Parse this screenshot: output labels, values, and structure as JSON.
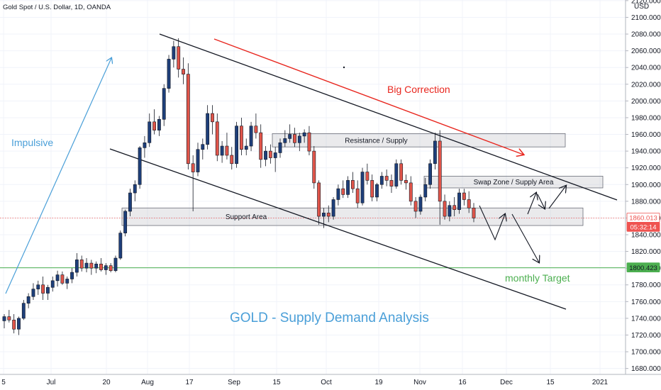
{
  "header": {
    "symbol": "Gold Spot / U.S. Dollar, 1D, OANDA",
    "currency": "USD"
  },
  "chart_data": {
    "type": "candlestick",
    "title": "GOLD - Supply Demand Analysis",
    "ylim": [
      1660,
      2130
    ],
    "y_ticks": [
      1680,
      1700,
      1720,
      1740,
      1760,
      1780,
      1800,
      1820,
      1840,
      1860,
      1880,
      1900,
      1920,
      1940,
      1960,
      1980,
      2000,
      2020,
      2040,
      2060,
      2080,
      2100,
      2120
    ],
    "x_ticks": [
      "5",
      "Jul",
      "20",
      "Aug",
      "17",
      "Sep",
      "15",
      "Oct",
      "19",
      "Nov",
      "16",
      "Dec",
      "15",
      "2021"
    ],
    "price_labels": [
      {
        "value": 1860.013,
        "text": "1860.013",
        "color": "#ffffff",
        "bg": "#ef5350",
        "text_color": "#ef5350"
      },
      {
        "value": 1849.0,
        "text": "05:32:14",
        "bg": "#ef5350",
        "text_color": "#ffffff"
      },
      {
        "value": 1800.423,
        "text": "1800.423",
        "bg": "#4caf50",
        "text_color": "#131722"
      }
    ],
    "horizontal_lines": [
      {
        "name": "monthly-target-line",
        "value": 1800.423,
        "color": "#4caf50"
      },
      {
        "name": "last-price-line",
        "value": 1860.013,
        "color": "#ef5350",
        "dashed": true
      }
    ],
    "zones": [
      {
        "name": "resistance-supply",
        "label": "Resistance / Supply",
        "top": 1961,
        "bottom": 1945
      },
      {
        "name": "swap-zone",
        "label": "Swap Zone / Supply Area",
        "top": 1910,
        "bottom": 1896
      },
      {
        "name": "support-area",
        "label": "Support Area",
        "top": 1872,
        "bottom": 1851
      }
    ],
    "annotations": [
      {
        "name": "impulsive-label",
        "text": "Impulsive",
        "color": "#4a9fd8"
      },
      {
        "name": "big-correction-label",
        "text": "Big Correction",
        "color": "#e8261e"
      },
      {
        "name": "monthly-target-label",
        "text": "monthly Target",
        "color": "#4caf50"
      },
      {
        "name": "analysis-title",
        "text": "GOLD - Supply Demand Analysis",
        "color": "#4a9fd8"
      }
    ],
    "candles": [
      [
        1737,
        1745,
        1728,
        1742
      ],
      [
        1742,
        1750,
        1735,
        1738
      ],
      [
        1738,
        1745,
        1722,
        1727
      ],
      [
        1727,
        1742,
        1720,
        1740
      ],
      [
        1740,
        1762,
        1738,
        1758
      ],
      [
        1758,
        1770,
        1752,
        1766
      ],
      [
        1766,
        1782,
        1762,
        1775
      ],
      [
        1775,
        1785,
        1768,
        1780
      ],
      [
        1780,
        1790,
        1762,
        1770
      ],
      [
        1770,
        1780,
        1762,
        1777
      ],
      [
        1777,
        1790,
        1772,
        1785
      ],
      [
        1785,
        1797,
        1778,
        1792
      ],
      [
        1792,
        1796,
        1780,
        1782
      ],
      [
        1782,
        1790,
        1775,
        1787
      ],
      [
        1787,
        1800,
        1782,
        1795
      ],
      [
        1795,
        1818,
        1790,
        1810
      ],
      [
        1810,
        1815,
        1796,
        1800
      ],
      [
        1800,
        1812,
        1795,
        1806
      ],
      [
        1806,
        1810,
        1792,
        1800
      ],
      [
        1800,
        1808,
        1794,
        1805
      ],
      [
        1805,
        1812,
        1796,
        1798
      ],
      [
        1798,
        1806,
        1792,
        1803
      ],
      [
        1803,
        1806,
        1795,
        1797
      ],
      [
        1797,
        1815,
        1795,
        1812
      ],
      [
        1812,
        1845,
        1810,
        1842
      ],
      [
        1842,
        1870,
        1838,
        1868
      ],
      [
        1868,
        1895,
        1862,
        1890
      ],
      [
        1890,
        1905,
        1880,
        1900
      ],
      [
        1900,
        1946,
        1895,
        1944
      ],
      [
        1944,
        1958,
        1932,
        1950
      ],
      [
        1950,
        1985,
        1945,
        1975
      ],
      [
        1975,
        1990,
        1960,
        1965
      ],
      [
        1965,
        1982,
        1958,
        1978
      ],
      [
        1978,
        2020,
        1970,
        2015
      ],
      [
        2015,
        2055,
        2010,
        2050
      ],
      [
        2050,
        2072,
        2040,
        2065
      ],
      [
        2065,
        2075,
        2028,
        2038
      ],
      [
        2038,
        2052,
        2020,
        2032
      ],
      [
        2032,
        2045,
        1918,
        1925
      ],
      [
        1925,
        1935,
        1868,
        1915
      ],
      [
        1915,
        1950,
        1910,
        1942
      ],
      [
        1942,
        1955,
        1930,
        1948
      ],
      [
        1948,
        1995,
        1942,
        1985
      ],
      [
        1985,
        1995,
        1960,
        1975
      ],
      [
        1975,
        1985,
        1928,
        1935
      ],
      [
        1935,
        1952,
        1926,
        1946
      ],
      [
        1946,
        1962,
        1930,
        1935
      ],
      [
        1935,
        1945,
        1918,
        1925
      ],
      [
        1925,
        1975,
        1920,
        1970
      ],
      [
        1970,
        1980,
        1935,
        1942
      ],
      [
        1942,
        1955,
        1935,
        1946
      ],
      [
        1946,
        1975,
        1940,
        1970
      ],
      [
        1970,
        1985,
        1955,
        1962
      ],
      [
        1962,
        1972,
        1920,
        1930
      ],
      [
        1930,
        1946,
        1922,
        1940
      ],
      [
        1940,
        1948,
        1925,
        1932
      ],
      [
        1932,
        1945,
        1915,
        1938
      ],
      [
        1938,
        1955,
        1932,
        1950
      ],
      [
        1950,
        1965,
        1945,
        1955
      ],
      [
        1955,
        1972,
        1950,
        1960
      ],
      [
        1960,
        1968,
        1945,
        1950
      ],
      [
        1950,
        1962,
        1940,
        1958
      ],
      [
        1958,
        1966,
        1950,
        1962
      ],
      [
        1962,
        1970,
        1935,
        1940
      ],
      [
        1940,
        1946,
        1895,
        1902
      ],
      [
        1902,
        1905,
        1852,
        1862
      ],
      [
        1862,
        1872,
        1848,
        1866
      ],
      [
        1866,
        1875,
        1855,
        1862
      ],
      [
        1862,
        1885,
        1858,
        1882
      ],
      [
        1882,
        1900,
        1875,
        1895
      ],
      [
        1895,
        1905,
        1884,
        1888
      ],
      [
        1888,
        1910,
        1884,
        1905
      ],
      [
        1905,
        1915,
        1890,
        1895
      ],
      [
        1895,
        1905,
        1872,
        1878
      ],
      [
        1878,
        1920,
        1875,
        1915
      ],
      [
        1915,
        1925,
        1900,
        1905
      ],
      [
        1905,
        1912,
        1880,
        1885
      ],
      [
        1885,
        1902,
        1880,
        1900
      ],
      [
        1900,
        1915,
        1895,
        1910
      ],
      [
        1910,
        1918,
        1898,
        1905
      ],
      [
        1905,
        1912,
        1890,
        1898
      ],
      [
        1898,
        1930,
        1895,
        1925
      ],
      [
        1925,
        1930,
        1900,
        1905
      ],
      [
        1905,
        1912,
        1894,
        1902
      ],
      [
        1902,
        1910,
        1875,
        1880
      ],
      [
        1880,
        1885,
        1860,
        1868
      ],
      [
        1868,
        1888,
        1864,
        1885
      ],
      [
        1885,
        1908,
        1880,
        1900
      ],
      [
        1900,
        1930,
        1895,
        1925
      ],
      [
        1925,
        1962,
        1918,
        1952
      ],
      [
        1952,
        1965,
        1852,
        1880
      ],
      [
        1880,
        1888,
        1858,
        1862
      ],
      [
        1862,
        1880,
        1856,
        1875
      ],
      [
        1875,
        1885,
        1862,
        1870
      ],
      [
        1870,
        1895,
        1865,
        1890
      ],
      [
        1890,
        1895,
        1875,
        1882
      ],
      [
        1882,
        1892,
        1866,
        1872
      ],
      [
        1872,
        1878,
        1855,
        1860
      ]
    ]
  }
}
